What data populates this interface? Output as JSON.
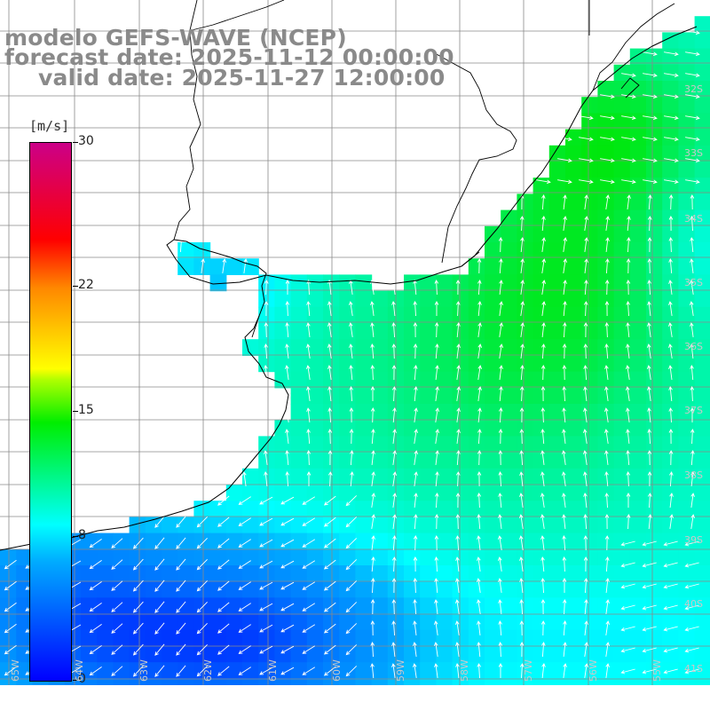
{
  "title": {
    "model": "modelo GEFS-WAVE (NCEP)",
    "forecast": "forecast date: 2025-11-12 00:00:00",
    "valid": "valid date: 2025-11-27 12:00:00"
  },
  "colorbar": {
    "unit": "[m/s]",
    "ticks": [
      "30",
      "22",
      "15",
      "8",
      "0"
    ],
    "tick_values": [
      30,
      22,
      15,
      8,
      0
    ],
    "range": [
      0,
      30
    ]
  },
  "lat_labels": [
    "32S",
    "33S",
    "34S",
    "35S",
    "36S",
    "37S",
    "38S",
    "39S",
    "40S",
    "41S"
  ],
  "lon_labels": [
    "65W",
    "64W",
    "63W",
    "62W",
    "61W",
    "60W",
    "59W",
    "58W",
    "57W",
    "56W",
    "55W"
  ],
  "colors": {
    "land": "#ffffff",
    "coast": "#000000",
    "grid": "#888888",
    "arrow": "#ffffff",
    "text_title": "#8a8a8a"
  }
}
